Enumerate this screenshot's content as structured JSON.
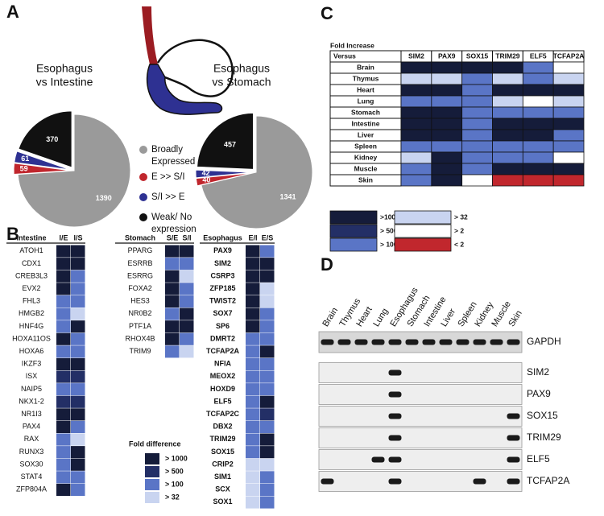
{
  "panels": {
    "a": "A",
    "b": "B",
    "c": "C",
    "d": "D"
  },
  "pies": [
    {
      "title": [
        "Esophagus",
        "vs Intestine"
      ],
      "values": [
        1390,
        59,
        61,
        370
      ]
    },
    {
      "title": [
        "Esophagus",
        "vs Stomach"
      ],
      "values": [
        1341,
        40,
        42,
        457
      ]
    }
  ],
  "pie_legend": [
    {
      "label": [
        "Broadly",
        "Expressed"
      ],
      "color": "#9a9a9a"
    },
    {
      "label": [
        "E >> S/I"
      ],
      "color": "#c0262d"
    },
    {
      "label": [
        "S/I >> E"
      ],
      "color": "#2e3192"
    },
    {
      "label": [
        "Weak/ No",
        "expression"
      ],
      "color": "#111111"
    }
  ],
  "gene_tables": [
    {
      "header": [
        "Intestine",
        "I/E",
        "I/S"
      ],
      "rows": [
        {
          "gene": "ATOH1",
          "colors": [
            "#151c3a",
            "#151c3a"
          ]
        },
        {
          "gene": "CDX1",
          "colors": [
            "#151c3a",
            "#151c3a"
          ]
        },
        {
          "gene": "CREB3L3",
          "colors": [
            "#151c3a",
            "#5a75c6"
          ]
        },
        {
          "gene": "EVX2",
          "colors": [
            "#151c3a",
            "#5a75c6"
          ]
        },
        {
          "gene": "FHL3",
          "colors": [
            "#5a75c6",
            "#5a75c6"
          ]
        },
        {
          "gene": "HMGB2",
          "colors": [
            "#5a75c6",
            "#c9d4f0"
          ]
        },
        {
          "gene": "HNF4G",
          "colors": [
            "#5a75c6",
            "#151c3a"
          ]
        },
        {
          "gene": "HOXA11OS",
          "colors": [
            "#151c3a",
            "#5a75c6"
          ]
        },
        {
          "gene": "HOXA6",
          "colors": [
            "#5a75c6",
            "#5a75c6"
          ]
        },
        {
          "gene": "IKZF3",
          "colors": [
            "#151c3a",
            "#151c3a"
          ]
        },
        {
          "gene": "ISX",
          "colors": [
            "#232f66",
            "#232f66"
          ]
        },
        {
          "gene": "NAIP5",
          "colors": [
            "#5a75c6",
            "#5a75c6"
          ]
        },
        {
          "gene": "NKX1-2",
          "colors": [
            "#232f66",
            "#232f66"
          ]
        },
        {
          "gene": "NR1I3",
          "colors": [
            "#151c3a",
            "#151c3a"
          ]
        },
        {
          "gene": "PAX4",
          "colors": [
            "#151c3a",
            "#5a75c6"
          ]
        },
        {
          "gene": "RAX",
          "colors": [
            "#5a75c6",
            "#c9d4f0"
          ]
        },
        {
          "gene": "RUNX3",
          "colors": [
            "#5a75c6",
            "#151c3a"
          ]
        },
        {
          "gene": "SOX30",
          "colors": [
            "#5a75c6",
            "#151c3a"
          ]
        },
        {
          "gene": "STAT4",
          "colors": [
            "#5a75c6",
            "#5a75c6"
          ]
        },
        {
          "gene": "ZFP804A",
          "colors": [
            "#151c3a",
            "#5a75c6"
          ]
        }
      ]
    },
    {
      "header": [
        "Stomach",
        "S/E",
        "S/I"
      ],
      "rows": [
        {
          "gene": "PPARG",
          "colors": [
            "#151c3a",
            "#151c3a"
          ]
        },
        {
          "gene": "ESRRB",
          "colors": [
            "#5a75c6",
            "#5a75c6"
          ]
        },
        {
          "gene": "ESRRG",
          "colors": [
            "#151c3a",
            "#c9d4f0"
          ]
        },
        {
          "gene": "FOXA2",
          "colors": [
            "#151c3a",
            "#5a75c6"
          ]
        },
        {
          "gene": "HES3",
          "colors": [
            "#151c3a",
            "#5a75c6"
          ]
        },
        {
          "gene": "NR0B2",
          "colors": [
            "#5a75c6",
            "#151c3a"
          ]
        },
        {
          "gene": "PTF1A",
          "colors": [
            "#151c3a",
            "#151c3a"
          ]
        },
        {
          "gene": "RHOX4B",
          "colors": [
            "#151c3a",
            "#5a75c6"
          ]
        },
        {
          "gene": "TRIM9",
          "colors": [
            "#5a75c6",
            "#c9d4f0"
          ]
        }
      ]
    },
    {
      "header": [
        "Esophagus",
        "E/I",
        "E/S"
      ],
      "rows": [
        {
          "gene": "PAX9",
          "colors": [
            "#151c3a",
            "#5a75c6"
          ]
        },
        {
          "gene": "SIM2",
          "colors": [
            "#151c3a",
            "#151c3a"
          ]
        },
        {
          "gene": "CSRP3",
          "colors": [
            "#151c3a",
            "#151c3a"
          ]
        },
        {
          "gene": "ZFP185",
          "colors": [
            "#151c3a",
            "#c9d4f0"
          ]
        },
        {
          "gene": "TWIST2",
          "colors": [
            "#151c3a",
            "#c9d4f0"
          ]
        },
        {
          "gene": "SOX7",
          "colors": [
            "#151c3a",
            "#5a75c6"
          ]
        },
        {
          "gene": "SP6",
          "colors": [
            "#151c3a",
            "#5a75c6"
          ]
        },
        {
          "gene": "DMRT2",
          "colors": [
            "#5a75c6",
            "#5a75c6"
          ]
        },
        {
          "gene": "TCFAP2A",
          "colors": [
            "#5a75c6",
            "#151c3a"
          ]
        },
        {
          "gene": "NFIA",
          "colors": [
            "#5a75c6",
            "#5a75c6"
          ]
        },
        {
          "gene": "MEOX2",
          "colors": [
            "#5a75c6",
            "#5a75c6"
          ]
        },
        {
          "gene": "HOXD9",
          "colors": [
            "#5a75c6",
            "#5a75c6"
          ]
        },
        {
          "gene": "ELF5",
          "colors": [
            "#5a75c6",
            "#151c3a"
          ]
        },
        {
          "gene": "TCFAP2C",
          "colors": [
            "#5a75c6",
            "#232f66"
          ]
        },
        {
          "gene": "DBX2",
          "colors": [
            "#5a75c6",
            "#5a75c6"
          ]
        },
        {
          "gene": "TRIM29",
          "colors": [
            "#5a75c6",
            "#151c3a"
          ]
        },
        {
          "gene": "SOX15",
          "colors": [
            "#5a75c6",
            "#151c3a"
          ]
        },
        {
          "gene": "CRIP2",
          "colors": [
            "#c9d4f0",
            "#c9d4f0"
          ]
        },
        {
          "gene": "SIM1",
          "colors": [
            "#c9d4f0",
            "#5a75c6"
          ]
        },
        {
          "gene": "SCX",
          "colors": [
            "#c9d4f0",
            "#5a75c6"
          ]
        },
        {
          "gene": "SOX1",
          "colors": [
            "#c9d4f0",
            "#5a75c6"
          ]
        }
      ]
    }
  ],
  "fold_legend": {
    "title": "Fold difference",
    "items": [
      {
        "label": "> 1000",
        "color": "#151c3a"
      },
      {
        "label": "> 500",
        "color": "#232f66"
      },
      {
        "label": "> 100",
        "color": "#5a75c6"
      },
      {
        "label": "> 32",
        "color": "#c9d4f0"
      }
    ]
  },
  "tissue_table": {
    "title": "Fold Increase",
    "corner": "Versus",
    "columns": [
      "SIM2",
      "PAX9",
      "SOX15",
      "TRIM29",
      "ELF5",
      "TCFAP2A"
    ],
    "rows": [
      {
        "tissue": "Brain",
        "colors": [
          "#151c3a",
          "#151c3a",
          "#151c3a",
          "#151c3a",
          "#5a75c6",
          "#ffffff"
        ]
      },
      {
        "tissue": "Thymus",
        "colors": [
          "#c9d4f0",
          "#c9d4f0",
          "#5a75c6",
          "#c9d4f0",
          "#5a75c6",
          "#c9d4f0"
        ]
      },
      {
        "tissue": "Heart",
        "colors": [
          "#151c3a",
          "#151c3a",
          "#5a75c6",
          "#151c3a",
          "#151c3a",
          "#151c3a"
        ]
      },
      {
        "tissue": "Lung",
        "colors": [
          "#5a75c6",
          "#5a75c6",
          "#5a75c6",
          "#c9d4f0",
          "#ffffff",
          "#c9d4f0"
        ]
      },
      {
        "tissue": "Stomach",
        "colors": [
          "#151c3a",
          "#151c3a",
          "#5a75c6",
          "#5a75c6",
          "#5a75c6",
          "#5a75c6"
        ]
      },
      {
        "tissue": "Intestine",
        "colors": [
          "#151c3a",
          "#151c3a",
          "#5a75c6",
          "#151c3a",
          "#151c3a",
          "#151c3a"
        ]
      },
      {
        "tissue": "Liver",
        "colors": [
          "#151c3a",
          "#151c3a",
          "#5a75c6",
          "#151c3a",
          "#151c3a",
          "#5a75c6"
        ]
      },
      {
        "tissue": "Spleen",
        "colors": [
          "#5a75c6",
          "#5a75c6",
          "#5a75c6",
          "#5a75c6",
          "#5a75c6",
          "#5a75c6"
        ]
      },
      {
        "tissue": "Kidney",
        "colors": [
          "#c9d4f0",
          "#151c3a",
          "#5a75c6",
          "#5a75c6",
          "#5a75c6",
          "#ffffff"
        ]
      },
      {
        "tissue": "Muscle",
        "colors": [
          "#5a75c6",
          "#151c3a",
          "#5a75c6",
          "#151c3a",
          "#151c3a",
          "#151c3a"
        ]
      },
      {
        "tissue": "Skin",
        "colors": [
          "#5a75c6",
          "#151c3a",
          "#ffffff",
          "#c1272d",
          "#c1272d",
          "#c1272d"
        ]
      }
    ],
    "legend": [
      {
        "label": ">1000",
        "color": "#151c3a"
      },
      {
        "label": "> 500",
        "color": "#232f66"
      },
      {
        "label": "> 100",
        "color": "#5a75c6"
      },
      {
        "label": "> 32",
        "color": "#c9d4f0"
      },
      {
        "label": ">  2",
        "color": "#ffffff"
      },
      {
        "label": "<  2",
        "color": "#c1272d"
      }
    ]
  },
  "gel": {
    "lanes": [
      "Brain",
      "Thymus",
      "Heart",
      "Lung",
      "Esophagus",
      "Stomach",
      "Intestine",
      "Liver",
      "Spleen",
      "Kidney",
      "Muscle",
      "Skin"
    ],
    "rows": [
      {
        "gene": "GAPDH",
        "bands": [
          true,
          true,
          true,
          true,
          true,
          true,
          true,
          true,
          true,
          true,
          true,
          true
        ]
      },
      {
        "gene": "SIM2",
        "bands": [
          false,
          false,
          false,
          false,
          true,
          false,
          false,
          false,
          false,
          false,
          false,
          false
        ]
      },
      {
        "gene": "PAX9",
        "bands": [
          false,
          false,
          false,
          false,
          true,
          false,
          false,
          false,
          false,
          false,
          false,
          false
        ]
      },
      {
        "gene": "SOX15",
        "bands": [
          false,
          false,
          false,
          false,
          true,
          false,
          false,
          false,
          false,
          false,
          false,
          true
        ]
      },
      {
        "gene": "TRIM29",
        "bands": [
          false,
          false,
          false,
          false,
          true,
          false,
          false,
          false,
          false,
          false,
          false,
          true
        ]
      },
      {
        "gene": "ELF5",
        "bands": [
          false,
          false,
          false,
          true,
          true,
          false,
          false,
          false,
          false,
          false,
          false,
          true
        ]
      },
      {
        "gene": "TCFAP2A",
        "bands": [
          true,
          false,
          false,
          false,
          true,
          false,
          false,
          false,
          false,
          true,
          false,
          true
        ]
      }
    ]
  }
}
